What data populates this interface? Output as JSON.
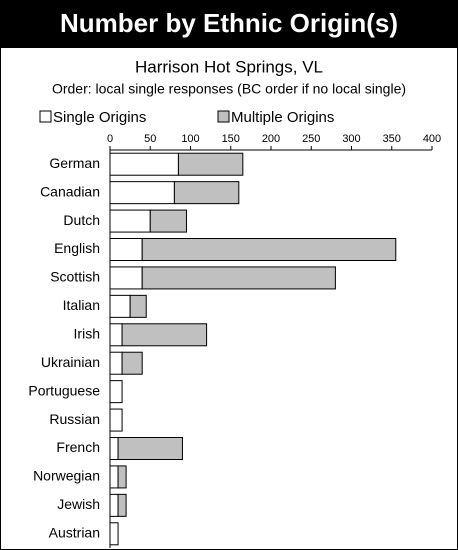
{
  "chart_data": {
    "type": "hbar_stacked",
    "title": "Number by Ethnic Origin(s)",
    "subtitle": "Harrison Hot Springs, VL",
    "subtitle2": "Order: local single responses (BC order if no local single)",
    "categories": [
      "German",
      "Canadian",
      "Dutch",
      "English",
      "Scottish",
      "Italian",
      "Irish",
      "Ukrainian",
      "Portuguese",
      "Russian",
      "French",
      "Norwegian",
      "Jewish",
      "Austrian"
    ],
    "series": [
      {
        "name": "Single Origins",
        "color": "#ffffff",
        "values": [
          85,
          80,
          50,
          40,
          40,
          25,
          15,
          15,
          15,
          15,
          10,
          10,
          10,
          10
        ]
      },
      {
        "name": "Multiple Origins",
        "color": "#c0c0c0",
        "values": [
          80,
          80,
          45,
          315,
          240,
          20,
          105,
          25,
          0,
          0,
          80,
          10,
          10,
          0
        ]
      }
    ],
    "xlim": [
      0,
      400
    ],
    "xticks": [
      0,
      50,
      100,
      150,
      200,
      250,
      300,
      350,
      400
    ]
  }
}
